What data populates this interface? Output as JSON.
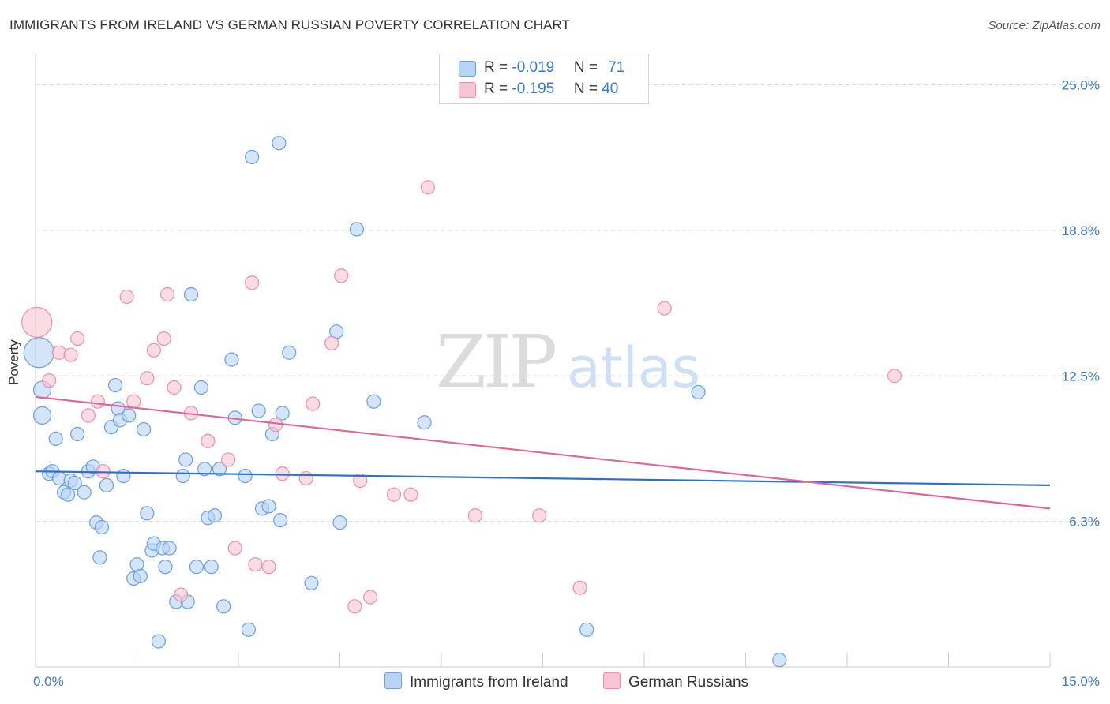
{
  "title": "IMMIGRANTS FROM IRELAND VS GERMAN RUSSIAN POVERTY CORRELATION CHART",
  "source": "Source: ZipAtlas.com",
  "watermark": {
    "zip": "ZIP",
    "atlas": "atlas"
  },
  "legend_top": [
    {
      "r_label": "R = ",
      "r_value": "-0.019",
      "n_label": "N = ",
      "n_value": "71"
    },
    {
      "r_label": "R = ",
      "r_value": "-0.195",
      "n_label": "N = ",
      "n_value": "40"
    }
  ],
  "chart_data": {
    "type": "scatter",
    "title": "IMMIGRANTS FROM IRELAND VS GERMAN RUSSIAN POVERTY CORRELATION CHART",
    "xlabel": "",
    "ylabel": "Poverty",
    "xlim": [
      0,
      15
    ],
    "ylim": [
      0,
      26
    ],
    "x_tick_labels": [
      {
        "value": 0,
        "label": "0.0%"
      },
      {
        "value": 15,
        "label": "15.0%"
      }
    ],
    "y_tick_labels": [
      {
        "value": 6.25,
        "label": "6.3%"
      },
      {
        "value": 12.5,
        "label": "12.5%"
      },
      {
        "value": 18.75,
        "label": "18.8%"
      },
      {
        "value": 25.0,
        "label": "25.0%"
      }
    ],
    "grid": true,
    "colors": {
      "blue_fill": "#b8d4f5",
      "blue_stroke": "#6a9fe0",
      "blue_line": "#2f6fcc",
      "pink_fill": "#f9c4d4",
      "pink_stroke": "#ec8fae",
      "pink_line": "#e0659a",
      "tick_text": "#3a78c9",
      "grid": "#d9d9d9"
    },
    "series": [
      {
        "name": "Immigrants from Ireland",
        "trend": {
          "x0": 0.0,
          "y0": 8.4,
          "x1": 15.0,
          "y1": 7.8
        },
        "points": [
          {
            "x": 0.05,
            "y": 13.5,
            "size": "large"
          },
          {
            "x": 0.1,
            "y": 11.9,
            "size": "medium"
          },
          {
            "x": 0.1,
            "y": 10.8,
            "size": "medium"
          },
          {
            "x": 0.2,
            "y": 8.3
          },
          {
            "x": 0.25,
            "y": 8.4
          },
          {
            "x": 0.3,
            "y": 9.8
          },
          {
            "x": 0.35,
            "y": 8.1
          },
          {
            "x": 0.42,
            "y": 7.5
          },
          {
            "x": 0.48,
            "y": 7.4
          },
          {
            "x": 0.52,
            "y": 8.0
          },
          {
            "x": 0.58,
            "y": 7.9
          },
          {
            "x": 0.62,
            "y": 10.0
          },
          {
            "x": 0.72,
            "y": 7.5
          },
          {
            "x": 0.78,
            "y": 8.4
          },
          {
            "x": 0.85,
            "y": 8.6
          },
          {
            "x": 0.9,
            "y": 6.2
          },
          {
            "x": 0.95,
            "y": 4.7
          },
          {
            "x": 0.98,
            "y": 6.0
          },
          {
            "x": 1.05,
            "y": 7.8
          },
          {
            "x": 1.12,
            "y": 10.3
          },
          {
            "x": 1.18,
            "y": 12.1
          },
          {
            "x": 1.22,
            "y": 11.1
          },
          {
            "x": 1.25,
            "y": 10.6
          },
          {
            "x": 1.3,
            "y": 8.2
          },
          {
            "x": 1.38,
            "y": 10.8
          },
          {
            "x": 1.45,
            "y": 3.8
          },
          {
            "x": 1.5,
            "y": 4.4
          },
          {
            "x": 1.55,
            "y": 3.9
          },
          {
            "x": 1.6,
            "y": 10.2
          },
          {
            "x": 1.65,
            "y": 6.6
          },
          {
            "x": 1.72,
            "y": 5.0
          },
          {
            "x": 1.75,
            "y": 5.3
          },
          {
            "x": 1.82,
            "y": 1.1
          },
          {
            "x": 1.88,
            "y": 5.1
          },
          {
            "x": 1.92,
            "y": 4.3
          },
          {
            "x": 1.98,
            "y": 5.1
          },
          {
            "x": 2.08,
            "y": 2.8
          },
          {
            "x": 2.18,
            "y": 8.2
          },
          {
            "x": 2.22,
            "y": 8.9
          },
          {
            "x": 2.25,
            "y": 2.8
          },
          {
            "x": 2.3,
            "y": 16.0
          },
          {
            "x": 2.38,
            "y": 4.3
          },
          {
            "x": 2.45,
            "y": 12.0
          },
          {
            "x": 2.5,
            "y": 8.5
          },
          {
            "x": 2.55,
            "y": 6.4
          },
          {
            "x": 2.6,
            "y": 4.3
          },
          {
            "x": 2.65,
            "y": 6.5
          },
          {
            "x": 2.72,
            "y": 8.5
          },
          {
            "x": 2.78,
            "y": 2.6
          },
          {
            "x": 2.9,
            "y": 13.2
          },
          {
            "x": 2.95,
            "y": 10.7
          },
          {
            "x": 3.1,
            "y": 8.2
          },
          {
            "x": 3.15,
            "y": 1.6
          },
          {
            "x": 3.2,
            "y": 21.9
          },
          {
            "x": 3.3,
            "y": 11.0
          },
          {
            "x": 3.35,
            "y": 6.8
          },
          {
            "x": 3.45,
            "y": 6.9
          },
          {
            "x": 3.5,
            "y": 10.0
          },
          {
            "x": 3.6,
            "y": 22.5
          },
          {
            "x": 3.62,
            "y": 6.3
          },
          {
            "x": 3.65,
            "y": 10.9
          },
          {
            "x": 3.75,
            "y": 13.5
          },
          {
            "x": 4.08,
            "y": 3.6
          },
          {
            "x": 4.45,
            "y": 14.4
          },
          {
            "x": 4.5,
            "y": 6.2
          },
          {
            "x": 4.75,
            "y": 18.8
          },
          {
            "x": 5.0,
            "y": 11.4
          },
          {
            "x": 5.75,
            "y": 10.5
          },
          {
            "x": 8.15,
            "y": 1.6
          },
          {
            "x": 9.8,
            "y": 11.8
          },
          {
            "x": 11.0,
            "y": 0.3
          }
        ]
      },
      {
        "name": "German Russians",
        "trend": {
          "x0": 0.0,
          "y0": 11.6,
          "x1": 15.0,
          "y1": 6.8
        },
        "points": [
          {
            "x": 0.02,
            "y": 14.8,
            "size": "large"
          },
          {
            "x": 0.2,
            "y": 12.3
          },
          {
            "x": 0.35,
            "y": 13.5
          },
          {
            "x": 0.52,
            "y": 13.4
          },
          {
            "x": 0.62,
            "y": 14.1
          },
          {
            "x": 0.78,
            "y": 10.8
          },
          {
            "x": 0.92,
            "y": 11.4
          },
          {
            "x": 1.0,
            "y": 8.4
          },
          {
            "x": 1.35,
            "y": 15.9
          },
          {
            "x": 1.45,
            "y": 11.4
          },
          {
            "x": 1.65,
            "y": 12.4
          },
          {
            "x": 1.75,
            "y": 13.6
          },
          {
            "x": 1.9,
            "y": 14.1
          },
          {
            "x": 1.95,
            "y": 16.0
          },
          {
            "x": 2.05,
            "y": 12.0
          },
          {
            "x": 2.15,
            "y": 3.1
          },
          {
            "x": 2.3,
            "y": 10.9
          },
          {
            "x": 2.55,
            "y": 9.7
          },
          {
            "x": 2.85,
            "y": 8.9
          },
          {
            "x": 2.95,
            "y": 5.1
          },
          {
            "x": 3.2,
            "y": 16.5
          },
          {
            "x": 3.25,
            "y": 4.4
          },
          {
            "x": 3.45,
            "y": 4.3
          },
          {
            "x": 3.55,
            "y": 10.4
          },
          {
            "x": 3.65,
            "y": 8.3
          },
          {
            "x": 4.0,
            "y": 8.1
          },
          {
            "x": 4.1,
            "y": 11.3
          },
          {
            "x": 4.38,
            "y": 13.9
          },
          {
            "x": 4.52,
            "y": 16.8
          },
          {
            "x": 4.72,
            "y": 2.6
          },
          {
            "x": 4.8,
            "y": 8.0
          },
          {
            "x": 4.95,
            "y": 3.0
          },
          {
            "x": 5.3,
            "y": 7.4
          },
          {
            "x": 5.55,
            "y": 7.4
          },
          {
            "x": 5.8,
            "y": 20.6
          },
          {
            "x": 6.5,
            "y": 6.5
          },
          {
            "x": 7.45,
            "y": 6.5
          },
          {
            "x": 8.05,
            "y": 3.4
          },
          {
            "x": 9.3,
            "y": 15.4
          },
          {
            "x": 12.7,
            "y": 12.5
          }
        ]
      }
    ]
  },
  "legend_bottom": [
    "Immigrants from Ireland",
    "German Russians"
  ]
}
